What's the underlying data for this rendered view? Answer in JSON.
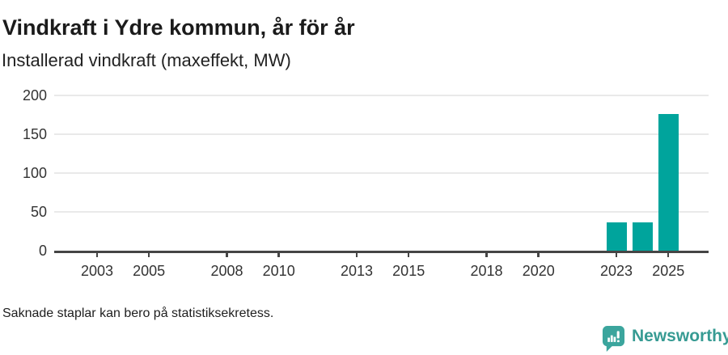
{
  "header": {
    "title": "Vindkraft i Ydre kommun, år för år",
    "subtitle": "Installerad vindkraft (maxeffekt, MW)"
  },
  "footer": {
    "note": "Saknade staplar kan bero på statistiksekretess."
  },
  "brand": {
    "name": "Newsworthy",
    "icon": "newsworthy-speech-bubble-bar-chart-icon",
    "color": "#3aa09a"
  },
  "colors": {
    "bar": "#00a49c",
    "grid": "#e9e9e9",
    "axis": "#454545",
    "title_text": "#1b1b1b",
    "tick_text": "#333333"
  },
  "chart_data": {
    "type": "bar",
    "title": "Vindkraft i Ydre kommun, år för år",
    "subtitle": "Installerad vindkraft (maxeffekt, MW)",
    "xlabel": "",
    "ylabel": "Installerad vindkraft (maxeffekt, MW)",
    "unit": "MW",
    "categories": [
      2023,
      2024,
      2025
    ],
    "values": [
      36,
      36,
      176
    ],
    "x_ticks": [
      2003,
      2005,
      2008,
      2010,
      2013,
      2015,
      2018,
      2020,
      2023,
      2025
    ],
    "y_ticks": [
      0,
      50,
      100,
      150,
      200
    ],
    "ylim": [
      0,
      200
    ],
    "x_domain": [
      2001.35,
      2026.55
    ],
    "grid": "horizontal",
    "legend": "none",
    "note": "Saknade staplar kan bero på statistiksekretess."
  }
}
